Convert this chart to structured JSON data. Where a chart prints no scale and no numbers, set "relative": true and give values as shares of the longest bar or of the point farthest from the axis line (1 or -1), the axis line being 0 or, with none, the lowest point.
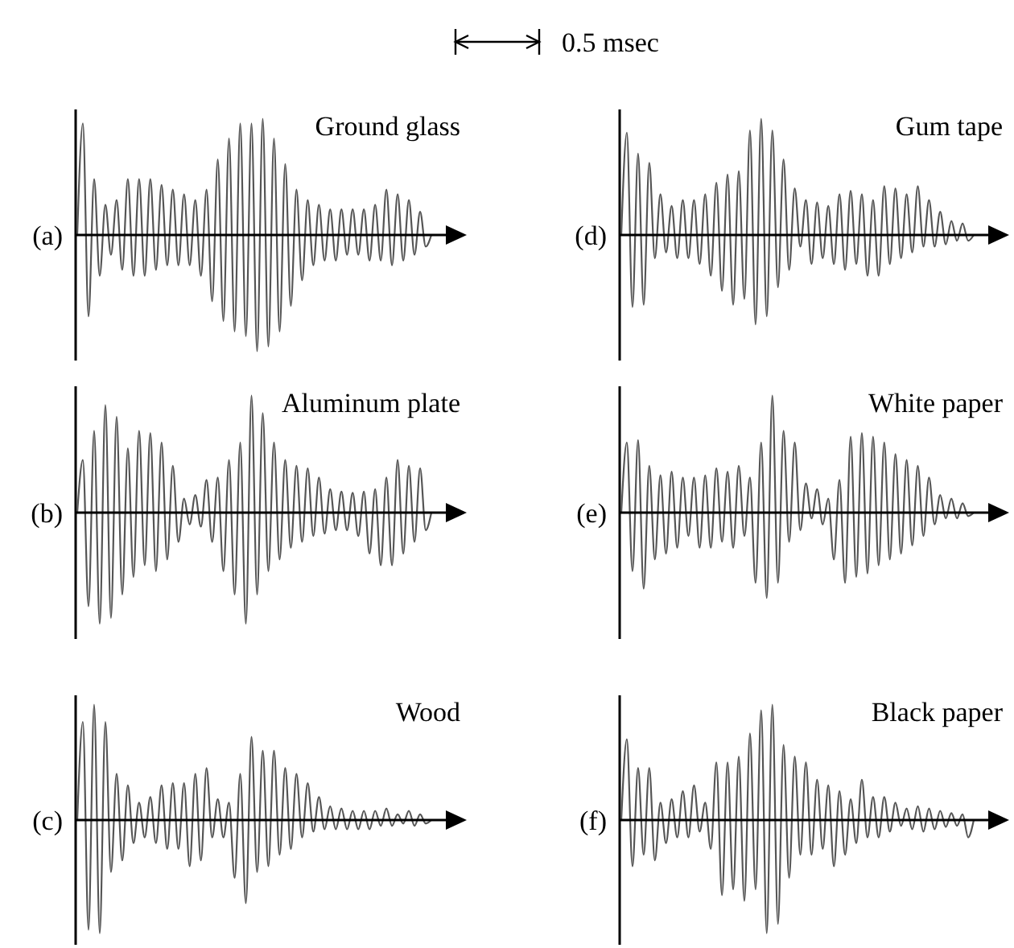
{
  "chart_data": [
    {
      "type": "line",
      "title": "Ground glass",
      "ylabel": "(a)",
      "relative": true,
      "annotations": [
        "0.5 msec"
      ],
      "categories": [
        null,
        null,
        null,
        null,
        null,
        null,
        null,
        null,
        null,
        null,
        null,
        null,
        null,
        null,
        null,
        null,
        null,
        null,
        null,
        null,
        null,
        null,
        null,
        null,
        null,
        null,
        null,
        null,
        null,
        null,
        null,
        null,
        null,
        null,
        null,
        null,
        null,
        null,
        null,
        null,
        null,
        null,
        null,
        null,
        null,
        null,
        null,
        null,
        null,
        null,
        null,
        null,
        null,
        null,
        null,
        null,
        null,
        null,
        null,
        null,
        null,
        null,
        null,
        null
      ],
      "series": [
        {
          "color": "#555555",
          "values": [
            0,
            0.96,
            -0.7,
            0.48,
            -0.35,
            0.26,
            -0.17,
            0.3,
            -0.3,
            0.48,
            -0.35,
            0.48,
            -0.35,
            0.48,
            -0.3,
            0.43,
            -0.26,
            0.39,
            -0.26,
            0.35,
            -0.26,
            0.3,
            -0.35,
            0.39,
            -0.57,
            0.65,
            -0.74,
            0.83,
            -0.83,
            0.96,
            -0.87,
            0.96,
            -1.0,
            1.0,
            -0.96,
            0.83,
            -0.83,
            0.61,
            -0.61,
            0.39,
            -0.39,
            0.3,
            -0.26,
            0.26,
            -0.22,
            0.22,
            -0.22,
            0.22,
            -0.17,
            0.22,
            -0.17,
            0.22,
            -0.22,
            0.26,
            -0.22,
            0.39,
            -0.26,
            0.35,
            -0.22,
            0.3,
            -0.17,
            0.2,
            -0.1,
            0
          ]
        }
      ]
    },
    {
      "type": "line",
      "title": "Gum tape",
      "ylabel": "(d)",
      "relative": true,
      "categories": [
        null,
        null,
        null,
        null,
        null,
        null,
        null,
        null,
        null,
        null,
        null,
        null,
        null,
        null,
        null,
        null,
        null,
        null,
        null,
        null,
        null,
        null,
        null,
        null,
        null,
        null,
        null,
        null,
        null,
        null,
        null,
        null,
        null,
        null,
        null,
        null,
        null,
        null,
        null,
        null,
        null,
        null,
        null,
        null,
        null,
        null,
        null,
        null,
        null,
        null,
        null,
        null,
        null,
        null,
        null,
        null,
        null,
        null,
        null,
        null,
        null,
        null,
        null,
        null
      ],
      "series": [
        {
          "color": "#555555",
          "values": [
            0,
            0.88,
            -0.62,
            0.7,
            -0.6,
            0.62,
            -0.2,
            0.35,
            -0.15,
            0.25,
            -0.2,
            0.3,
            -0.2,
            0.3,
            -0.25,
            0.35,
            -0.35,
            0.45,
            -0.48,
            0.52,
            -0.6,
            0.55,
            -0.55,
            0.9,
            -0.77,
            1.0,
            -0.7,
            0.9,
            -0.45,
            0.65,
            -0.3,
            0.4,
            -0.1,
            0.3,
            -0.25,
            0.28,
            -0.2,
            0.25,
            -0.25,
            0.35,
            -0.3,
            0.38,
            -0.25,
            0.35,
            -0.35,
            0.3,
            -0.35,
            0.42,
            -0.25,
            0.4,
            -0.2,
            0.35,
            -0.15,
            0.42,
            -0.1,
            0.3,
            -0.1,
            0.2,
            -0.08,
            0.12,
            -0.05,
            0.1,
            -0.05,
            0
          ]
        }
      ]
    },
    {
      "type": "line",
      "title": "Aluminum plate",
      "ylabel": "(b)",
      "relative": true,
      "categories": [
        null,
        null,
        null,
        null,
        null,
        null,
        null,
        null,
        null,
        null,
        null,
        null,
        null,
        null,
        null,
        null,
        null,
        null,
        null,
        null,
        null,
        null,
        null,
        null,
        null,
        null,
        null,
        null,
        null,
        null,
        null,
        null,
        null,
        null,
        null,
        null,
        null,
        null,
        null,
        null,
        null,
        null,
        null,
        null,
        null,
        null,
        null,
        null,
        null,
        null,
        null,
        null,
        null,
        null,
        null,
        null,
        null,
        null,
        null,
        null,
        null,
        null,
        null,
        null
      ],
      "series": [
        {
          "color": "#555555",
          "values": [
            0,
            0.45,
            -0.8,
            0.7,
            -0.95,
            0.92,
            -0.9,
            0.82,
            -0.7,
            0.55,
            -0.55,
            0.7,
            -0.45,
            0.68,
            -0.5,
            0.6,
            -0.4,
            0.4,
            -0.25,
            0.12,
            -0.1,
            0.15,
            -0.12,
            0.28,
            -0.25,
            0.3,
            -0.5,
            0.45,
            -0.7,
            0.6,
            -0.95,
            1.0,
            -0.7,
            0.85,
            -0.5,
            0.6,
            -0.4,
            0.45,
            -0.3,
            0.4,
            -0.25,
            0.38,
            -0.2,
            0.3,
            -0.18,
            0.2,
            -0.15,
            0.18,
            -0.15,
            0.17,
            -0.2,
            0.18,
            -0.35,
            0.2,
            -0.45,
            0.3,
            -0.45,
            0.45,
            -0.35,
            0.4,
            -0.25,
            0.38,
            -0.15,
            0
          ]
        }
      ]
    },
    {
      "type": "line",
      "title": "White paper",
      "ylabel": "(e)",
      "relative": true,
      "categories": [
        null,
        null,
        null,
        null,
        null,
        null,
        null,
        null,
        null,
        null,
        null,
        null,
        null,
        null,
        null,
        null,
        null,
        null,
        null,
        null,
        null,
        null,
        null,
        null,
        null,
        null,
        null,
        null,
        null,
        null,
        null,
        null,
        null,
        null,
        null,
        null,
        null,
        null,
        null,
        null,
        null,
        null,
        null,
        null,
        null,
        null,
        null,
        null,
        null,
        null,
        null,
        null,
        null,
        null,
        null,
        null,
        null,
        null,
        null,
        null,
        null,
        null,
        null,
        null
      ],
      "series": [
        {
          "color": "#555555",
          "values": [
            0,
            0.6,
            -0.5,
            0.62,
            -0.65,
            0.4,
            -0.4,
            0.32,
            -0.35,
            0.35,
            -0.3,
            0.3,
            -0.2,
            0.3,
            -0.3,
            0.32,
            -0.3,
            0.38,
            -0.25,
            0.35,
            -0.3,
            0.4,
            -0.2,
            0.3,
            -0.6,
            0.6,
            -0.73,
            1.0,
            -0.6,
            0.7,
            -0.25,
            0.6,
            -0.15,
            0.25,
            -0.05,
            0.2,
            -0.1,
            0.12,
            -0.4,
            0.28,
            -0.6,
            0.65,
            -0.55,
            0.68,
            -0.52,
            0.65,
            -0.45,
            0.6,
            -0.4,
            0.5,
            -0.35,
            0.45,
            -0.28,
            0.4,
            -0.2,
            0.3,
            -0.1,
            0.15,
            -0.05,
            0.12,
            -0.05,
            0.08,
            -0.03,
            0
          ]
        }
      ]
    },
    {
      "type": "line",
      "title": "Wood",
      "ylabel": "(c)",
      "relative": true,
      "categories": [
        null,
        null,
        null,
        null,
        null,
        null,
        null,
        null,
        null,
        null,
        null,
        null,
        null,
        null,
        null,
        null,
        null,
        null,
        null,
        null,
        null,
        null,
        null,
        null,
        null,
        null,
        null,
        null,
        null,
        null,
        null,
        null,
        null,
        null,
        null,
        null,
        null,
        null,
        null,
        null,
        null,
        null,
        null,
        null,
        null,
        null,
        null,
        null,
        null,
        null,
        null,
        null,
        null,
        null,
        null,
        null,
        null,
        null,
        null,
        null,
        null,
        null,
        null,
        null
      ],
      "series": [
        {
          "color": "#555555",
          "values": [
            0,
            0.85,
            -0.95,
            1.0,
            -0.98,
            0.85,
            -0.45,
            0.4,
            -0.35,
            0.3,
            -0.2,
            0.15,
            -0.15,
            0.2,
            -0.2,
            0.3,
            -0.25,
            0.32,
            -0.25,
            0.32,
            -0.4,
            0.4,
            -0.35,
            0.45,
            -0.15,
            0.18,
            -0.15,
            0.15,
            -0.5,
            0.4,
            -0.72,
            0.72,
            -0.45,
            0.6,
            -0.4,
            0.6,
            -0.3,
            0.45,
            -0.25,
            0.4,
            -0.15,
            0.32,
            -0.1,
            0.2,
            -0.08,
            0.12,
            -0.08,
            0.1,
            -0.08,
            0.08,
            -0.08,
            0.08,
            -0.08,
            0.08,
            -0.05,
            0.1,
            -0.05,
            0.05,
            -0.03,
            0.08,
            -0.05,
            0.05,
            -0.03,
            0
          ]
        }
      ]
    },
    {
      "type": "line",
      "title": "Black paper",
      "ylabel": "(f)",
      "relative": true,
      "categories": [
        null,
        null,
        null,
        null,
        null,
        null,
        null,
        null,
        null,
        null,
        null,
        null,
        null,
        null,
        null,
        null,
        null,
        null,
        null,
        null,
        null,
        null,
        null,
        null,
        null,
        null,
        null,
        null,
        null,
        null,
        null,
        null,
        null,
        null,
        null,
        null,
        null,
        null,
        null,
        null,
        null,
        null,
        null,
        null,
        null,
        null,
        null,
        null,
        null,
        null,
        null,
        null,
        null,
        null,
        null,
        null,
        null,
        null,
        null,
        null,
        null,
        null,
        null,
        null
      ],
      "series": [
        {
          "color": "#555555",
          "values": [
            0,
            0.7,
            -0.4,
            0.45,
            -0.3,
            0.45,
            -0.35,
            0.15,
            -0.2,
            0.18,
            -0.15,
            0.25,
            -0.15,
            0.3,
            -0.1,
            0.15,
            -0.25,
            0.5,
            -0.65,
            0.5,
            -0.6,
            0.55,
            -0.7,
            0.75,
            -0.6,
            0.95,
            -0.98,
            1.0,
            -0.9,
            0.65,
            -0.5,
            0.55,
            -0.3,
            0.5,
            -0.3,
            0.35,
            -0.25,
            0.3,
            -0.4,
            0.25,
            -0.3,
            0.18,
            -0.2,
            0.35,
            -0.15,
            0.2,
            -0.15,
            0.2,
            -0.1,
            0.15,
            -0.05,
            0.1,
            -0.08,
            0.12,
            -0.1,
            0.1,
            -0.08,
            0.08,
            -0.06,
            0.06,
            -0.05,
            0.05,
            -0.15,
            0
          ]
        }
      ]
    }
  ]
}
